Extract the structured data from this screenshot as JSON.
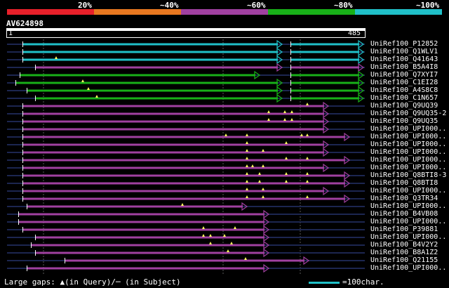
{
  "score_legend": [
    {
      "label": "20%",
      "color": "#e8202a"
    },
    {
      "label": "~40%",
      "color": "#e87820"
    },
    {
      "label": "~60%",
      "color": "#a040a0"
    },
    {
      "label": "~80%",
      "color": "#18b018"
    },
    {
      "label": "~100%",
      "color": "#20c0c8"
    }
  ],
  "query": {
    "name": "AV624898",
    "start": "1",
    "end": "485"
  },
  "hits": [
    {
      "id": "UniRef100_P12852",
      "color": "#20c0c8",
      "segments": [
        [
          32,
          402
        ],
        [
          414,
          518
        ]
      ],
      "gaps": []
    },
    {
      "id": "UniRef100_Q1WLV1",
      "color": "#20c0c8",
      "segments": [
        [
          32,
          402
        ],
        [
          414,
          518
        ]
      ],
      "gaps": []
    },
    {
      "id": "UniRef100_Q41643",
      "color": "#20c0c8",
      "segments": [
        [
          32,
          402
        ],
        [
          414,
          518
        ]
      ],
      "gaps": [
        [
          80,
          "q"
        ]
      ]
    },
    {
      "id": "UniRef100_B5A4I8",
      "color": "#a040a0",
      "segments": [
        [
          50,
          402
        ],
        [
          414,
          518
        ]
      ],
      "gaps": []
    },
    {
      "id": "UniRef100_Q7XYI7",
      "color": "#18b018",
      "segments": [
        [
          28,
          370
        ],
        [
          414,
          518
        ]
      ],
      "gaps": []
    },
    {
      "id": "UniRef100_C1EI28",
      "color": "#18b018",
      "segments": [
        [
          22,
          402
        ],
        [
          414,
          518
        ]
      ],
      "gaps": [
        [
          118,
          "q"
        ]
      ]
    },
    {
      "id": "UniRef100_A4S8C8",
      "color": "#18b018",
      "segments": [
        [
          38,
          402
        ],
        [
          414,
          518
        ]
      ],
      "gaps": [
        [
          126,
          "q"
        ]
      ]
    },
    {
      "id": "UniRef100_C1N657",
      "color": "#18b018",
      "segments": [
        [
          50,
          402
        ],
        [
          414,
          518
        ]
      ],
      "gaps": [
        [
          138,
          "q"
        ]
      ]
    },
    {
      "id": "UniRef100_Q9UQ39",
      "color": "#a040a0",
      "segments": [
        [
          32,
          468
        ]
      ],
      "gaps": [
        [
          438,
          "q"
        ]
      ]
    },
    {
      "id": "UniRef100_Q9UQ35-2",
      "color": "#a040a0",
      "segments": [
        [
          32,
          468
        ]
      ],
      "gaps": [
        [
          383,
          "q"
        ],
        [
          406,
          "q"
        ],
        [
          416,
          "q"
        ]
      ]
    },
    {
      "id": "UniRef100_Q9UQ35",
      "color": "#a040a0",
      "segments": [
        [
          32,
          468
        ]
      ],
      "gaps": [
        [
          383,
          "q"
        ],
        [
          406,
          "q"
        ],
        [
          416,
          "q"
        ]
      ]
    },
    {
      "id": "UniRef100_UPI000..",
      "color": "#a040a0",
      "segments": [
        [
          32,
          468
        ]
      ],
      "gaps": []
    },
    {
      "id": "UniRef100_UPI000..",
      "color": "#a040a0",
      "segments": [
        [
          32,
          498
        ]
      ],
      "gaps": [
        [
          322,
          "q"
        ],
        [
          352,
          "q"
        ],
        [
          430,
          "q"
        ],
        [
          438,
          "q"
        ]
      ]
    },
    {
      "id": "UniRef100_UPI000..",
      "color": "#a040a0",
      "segments": [
        [
          32,
          468
        ]
      ],
      "gaps": [
        [
          352,
          "q"
        ],
        [
          408,
          "q"
        ]
      ]
    },
    {
      "id": "UniRef100_UPI000..",
      "color": "#a040a0",
      "segments": [
        [
          32,
          468
        ]
      ],
      "gaps": [
        [
          352,
          "q"
        ],
        [
          375,
          "q"
        ]
      ]
    },
    {
      "id": "UniRef100_UPI000..",
      "color": "#a040a0",
      "segments": [
        [
          32,
          498
        ]
      ],
      "gaps": [
        [
          352,
          "q"
        ],
        [
          408,
          "q"
        ],
        [
          438,
          "q"
        ]
      ]
    },
    {
      "id": "UniRef100_UPI000..",
      "color": "#a040a0",
      "segments": [
        [
          32,
          468
        ]
      ],
      "gaps": [
        [
          352,
          "q"
        ],
        [
          360,
          "q"
        ],
        [
          375,
          "q"
        ]
      ]
    },
    {
      "id": "UniRef100_Q8BTI8-3",
      "color": "#a040a0",
      "segments": [
        [
          32,
          498
        ]
      ],
      "gaps": [
        [
          352,
          "q"
        ],
        [
          370,
          "q"
        ],
        [
          408,
          "q"
        ],
        [
          438,
          "q"
        ]
      ]
    },
    {
      "id": "UniRef100_Q8BTI8",
      "color": "#a040a0",
      "segments": [
        [
          32,
          498
        ]
      ],
      "gaps": [
        [
          352,
          "q"
        ],
        [
          370,
          "q"
        ],
        [
          408,
          "q"
        ],
        [
          438,
          "q"
        ]
      ]
    },
    {
      "id": "UniRef100_UPI000..",
      "color": "#a040a0",
      "segments": [
        [
          32,
          468
        ]
      ],
      "gaps": [
        [
          352,
          "q"
        ],
        [
          375,
          "q"
        ]
      ]
    },
    {
      "id": "UniRef100_Q3TR34",
      "color": "#a040a0",
      "segments": [
        [
          32,
          498
        ]
      ],
      "gaps": [
        [
          352,
          "q"
        ],
        [
          375,
          "q"
        ],
        [
          438,
          "q"
        ]
      ]
    },
    {
      "id": "UniRef100_UPI000..",
      "color": "#a040a0",
      "segments": [
        [
          38,
          352
        ]
      ],
      "gaps": [
        [
          260,
          "q"
        ]
      ]
    },
    {
      "id": "UniRef100_B4VB08",
      "color": "#a040a0",
      "segments": [
        [
          26,
          383
        ]
      ],
      "gaps": []
    },
    {
      "id": "UniRef100_UPI000..",
      "color": "#a040a0",
      "segments": [
        [
          26,
          383
        ]
      ],
      "gaps": []
    },
    {
      "id": "UniRef100_P39881",
      "color": "#a040a0",
      "segments": [
        [
          32,
          383
        ]
      ],
      "gaps": [
        [
          290,
          "q"
        ],
        [
          335,
          "q"
        ]
      ]
    },
    {
      "id": "UniRef100_UPI000..",
      "color": "#a040a0",
      "segments": [
        [
          50,
          383
        ]
      ],
      "gaps": [
        [
          290,
          "q"
        ],
        [
          300,
          "q"
        ],
        [
          320,
          "q"
        ]
      ]
    },
    {
      "id": "UniRef100_B4V2Y2",
      "color": "#a040a0",
      "segments": [
        [
          44,
          383
        ]
      ],
      "gaps": [
        [
          300,
          "q"
        ],
        [
          330,
          "q"
        ]
      ]
    },
    {
      "id": "UniRef100_B8A1Z2",
      "color": "#a040a0",
      "segments": [
        [
          50,
          383
        ]
      ],
      "gaps": [
        [
          325,
          "q"
        ]
      ]
    },
    {
      "id": "UniRef100_Q21155",
      "color": "#a040a0",
      "segments": [
        [
          92,
          440
        ]
      ],
      "gaps": [
        [
          350,
          "q"
        ]
      ]
    },
    {
      "id": "UniRef100_UPI000..",
      "color": "#a040a0",
      "segments": [
        [
          38,
          383
        ]
      ],
      "gaps": []
    }
  ],
  "footer": {
    "legend_text": "Large gaps: ▲(in Query)/─ (in Subject)",
    "scale_text": "=100char."
  }
}
